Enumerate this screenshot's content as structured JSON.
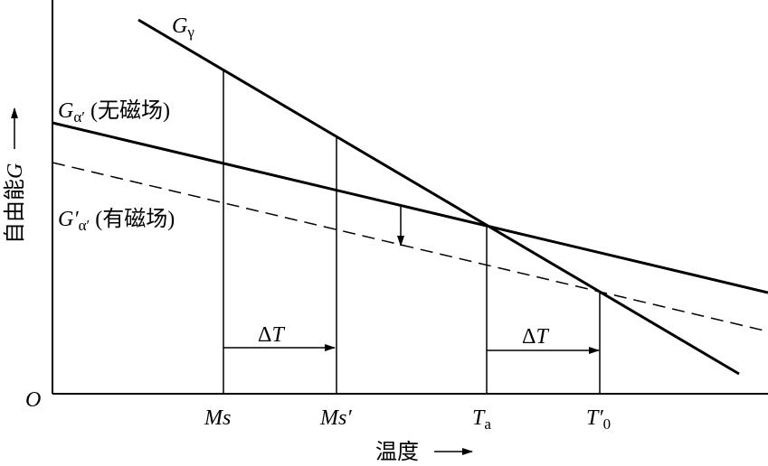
{
  "curves": {
    "g_gamma": {
      "symbol": "G",
      "subscript": "γ"
    },
    "g_alpha": {
      "symbol": "G",
      "subscript": "α′",
      "note": "(无磁场)"
    },
    "g_alpha_field": {
      "symbol": "G′",
      "subscript": "α′",
      "note": "(有磁场)"
    }
  },
  "axes": {
    "y_label": "自由能",
    "y_symbol": "G",
    "x_label": "温度",
    "origin": "O"
  },
  "x_marks": [
    {
      "symbol": "Ms",
      "subscript": ""
    },
    {
      "symbol": "Ms′",
      "subscript": ""
    },
    {
      "symbol": "T",
      "subscript": "a"
    },
    {
      "symbol": "T′",
      "subscript": "0"
    }
  ],
  "shifts": [
    {
      "delta": "Δ",
      "symbol": "T"
    },
    {
      "delta": "Δ",
      "symbol": "T"
    }
  ]
}
